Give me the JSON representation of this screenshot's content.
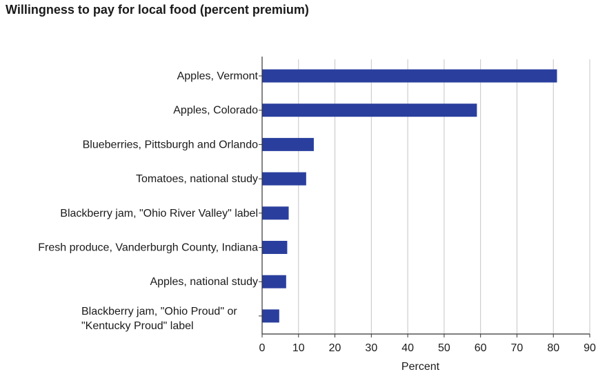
{
  "chart_data": {
    "type": "bar",
    "orientation": "horizontal",
    "title": "Willingness to pay for local food (percent premium)",
    "xlabel": "Percent",
    "ylabel": "",
    "xlim": [
      0,
      90
    ],
    "xticks": [
      0,
      10,
      20,
      30,
      40,
      50,
      60,
      70,
      80,
      90
    ],
    "grid": true,
    "categories": [
      [
        "Apples, Vermont"
      ],
      [
        "Apples, Colorado"
      ],
      [
        "Blueberries, Pittsburgh and Orlando"
      ],
      [
        "Tomatoes, national study"
      ],
      [
        "Blackberry jam, \"Ohio River Valley\" label"
      ],
      [
        "Fresh produce, Vanderburgh County, Indiana"
      ],
      [
        "Apples, national study"
      ],
      [
        "Blackberry jam, \"Ohio Proud\" or",
        "\"Kentucky Proud\" label"
      ]
    ],
    "values": [
      81,
      59,
      14.2,
      12.1,
      7.3,
      6.9,
      6.6,
      4.7
    ],
    "bar_color": "#2a3f9d"
  }
}
